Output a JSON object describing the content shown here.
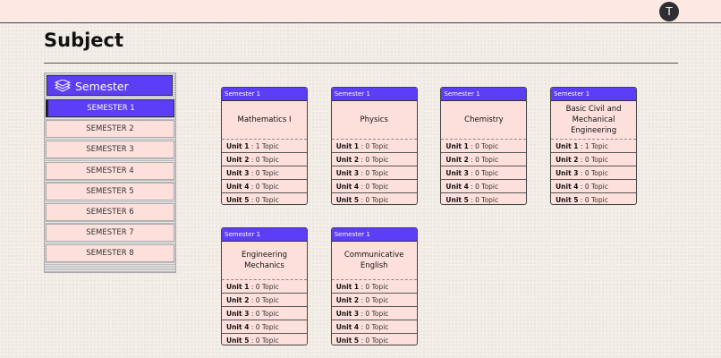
{
  "header": {
    "avatar": "T"
  },
  "page": {
    "title": "Subject"
  },
  "sidebar": {
    "heading": "Semester",
    "items": [
      "SEMESTER 1",
      "SEMESTER 2",
      "SEMESTER 3",
      "SEMESTER 4",
      "SEMESTER 5",
      "SEMESTER 6",
      "SEMESTER 7",
      "SEMESTER 8"
    ],
    "active": 0
  },
  "cards": [
    {
      "tag": "Semester 1",
      "title": "Mathematics I",
      "units": [
        {
          "label": "Unit 1",
          "detail": ": 1 Topic"
        },
        {
          "label": "Unit 2",
          "detail": ": 0 Topic"
        },
        {
          "label": "Unit 3",
          "detail": ": 0 Topic"
        },
        {
          "label": "Unit 4",
          "detail": ": 0 Topic"
        },
        {
          "label": "Unit 5",
          "detail": ": 0 Topic"
        }
      ]
    },
    {
      "tag": "Semester 1",
      "title": "Physics",
      "units": [
        {
          "label": "Unit 1",
          "detail": ": 0 Topic"
        },
        {
          "label": "Unit 2",
          "detail": ": 0 Topic"
        },
        {
          "label": "Unit 3",
          "detail": ": 0 Topic"
        },
        {
          "label": "Unit 4",
          "detail": ": 0 Topic"
        },
        {
          "label": "Unit 5",
          "detail": ": 0 Topic"
        }
      ]
    },
    {
      "tag": "Semester 1",
      "title": "Chemistry",
      "units": [
        {
          "label": "Unit 1",
          "detail": ": 0 Topic"
        },
        {
          "label": "Unit 2",
          "detail": ": 0 Topic"
        },
        {
          "label": "Unit 3",
          "detail": ": 0 Topic"
        },
        {
          "label": "Unit 4",
          "detail": ": 0 Topic"
        },
        {
          "label": "Unit 5",
          "detail": ": 0 Topic"
        }
      ]
    },
    {
      "tag": "Semester 1",
      "title": "Basic Civil and Mechanical Engineering",
      "units": [
        {
          "label": "Unit 1",
          "detail": ": 1 Topic"
        },
        {
          "label": "Unit 2",
          "detail": ": 0 Topic"
        },
        {
          "label": "Unit 3",
          "detail": ": 0 Topic"
        },
        {
          "label": "Unit 4",
          "detail": ": 0 Topic"
        },
        {
          "label": "Unit 5",
          "detail": ": 0 Topic"
        }
      ]
    },
    {
      "tag": "Semester 1",
      "title": "Engineering Mechanics",
      "units": [
        {
          "label": "Unit 1",
          "detail": ": 0 Topic"
        },
        {
          "label": "Unit 2",
          "detail": ": 0 Topic"
        },
        {
          "label": "Unit 3",
          "detail": ": 0 Topic"
        },
        {
          "label": "Unit 4",
          "detail": ": 0 Topic"
        },
        {
          "label": "Unit 5",
          "detail": ": 0 Topic"
        }
      ]
    },
    {
      "tag": "Semester 1",
      "title": "Communicative English",
      "units": [
        {
          "label": "Unit 1",
          "detail": ": 0 Topic"
        },
        {
          "label": "Unit 2",
          "detail": ": 0 Topic"
        },
        {
          "label": "Unit 3",
          "detail": ": 0 Topic"
        },
        {
          "label": "Unit 4",
          "detail": ": 0 Topic"
        },
        {
          "label": "Unit 5",
          "detail": ": 0 Topic"
        }
      ]
    }
  ]
}
